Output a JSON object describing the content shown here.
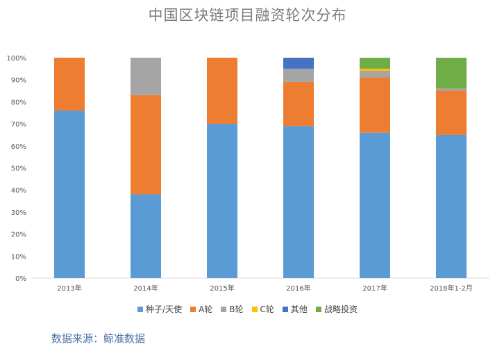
{
  "chart_data": {
    "type": "bar",
    "stacked": true,
    "title": "中国区块链项目融资轮次分布",
    "xlabel": "",
    "ylabel": "",
    "ylim": [
      0,
      100
    ],
    "yticks": [
      "0%",
      "10%",
      "20%",
      "30%",
      "40%",
      "50%",
      "60%",
      "70%",
      "80%",
      "90%",
      "100%"
    ],
    "categories": [
      "2013年",
      "2014年",
      "2015年",
      "2016年",
      "2017年",
      "2018年1-2月"
    ],
    "series": [
      {
        "name": "种子/天使",
        "color": "#5b9bd5",
        "values": [
          76,
          38,
          70,
          69,
          66,
          65
        ]
      },
      {
        "name": "A轮",
        "color": "#ed7d31",
        "values": [
          24,
          45,
          30,
          20,
          25,
          20
        ]
      },
      {
        "name": "B轮",
        "color": "#a5a5a5",
        "values": [
          0,
          17,
          0,
          6,
          3,
          1
        ]
      },
      {
        "name": "C轮",
        "color": "#ffc000",
        "values": [
          0,
          0,
          0,
          0,
          1,
          0
        ]
      },
      {
        "name": "其他",
        "color": "#4472c4",
        "values": [
          0,
          0,
          0,
          5,
          0,
          0
        ]
      },
      {
        "name": "战略投资",
        "color": "#70ad47",
        "values": [
          0,
          0,
          0,
          0,
          5,
          14
        ]
      }
    ],
    "legend_position": "bottom",
    "grid": false
  },
  "source": "数据来源：鲸准数据"
}
